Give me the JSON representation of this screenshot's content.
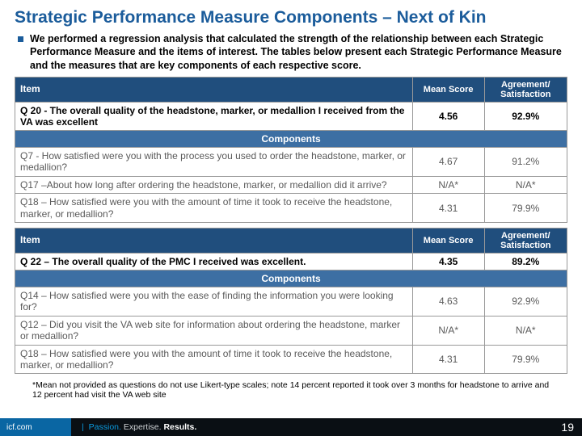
{
  "title": "Strategic Performance Measure Components – Next of Kin",
  "intro": "We performed a regression analysis that calculated the strength of the relationship between each Strategic Performance Measure and the items of interest. The tables below present each Strategic Performance Measure and the measures that are key components of each respective score.",
  "columns": {
    "item": "Item",
    "mean": "Mean Score",
    "agreement": "Agreement/ Satisfaction"
  },
  "components_label": "Components",
  "table1": {
    "main": {
      "label": "Q 20 - The overall quality of the headstone, marker, or medallion I received from the VA was excellent",
      "mean": "4.56",
      "agreement": "92.9%"
    },
    "rows": [
      {
        "label": "Q7 - How satisfied were you with the process you used to order the headstone, marker, or medallion?",
        "mean": "4.67",
        "agreement": "91.2%"
      },
      {
        "label": "Q17 –About how long after ordering the headstone, marker, or medallion did it arrive?",
        "mean": "N/A*",
        "agreement": "N/A*"
      },
      {
        "label": "Q18 – How satisfied were you with the amount of time it took to receive the headstone, marker, or medallion?",
        "mean": "4.31",
        "agreement": "79.9%"
      }
    ]
  },
  "table2": {
    "main": {
      "label": "Q 22 – The overall quality of the PMC I received was excellent.",
      "mean": "4.35",
      "agreement": "89.2%"
    },
    "rows": [
      {
        "label": "Q14 – How satisfied were you with the ease of finding the information you were looking for?",
        "mean": "4.63",
        "agreement": "92.9%"
      },
      {
        "label": "Q12 – Did you visit the VA web site for information about ordering the headstone, marker or medallion?",
        "mean": "N/A*",
        "agreement": "N/A*"
      },
      {
        "label": "Q18 – How satisfied were you with the amount of time it took to receive the headstone, marker, or medallion?",
        "mean": "4.31",
        "agreement": "79.9%"
      }
    ]
  },
  "footnote": "*Mean not provided as questions do not use Likert-type scales; note 14 percent reported it took over 3 months for headstone to arrive and 12 percent had visit the VA web site",
  "footer": {
    "site": "icf.com",
    "tag_passion": "Passion.",
    "tag_expertise": "Expertise.",
    "tag_results": "Results.",
    "page": "19"
  },
  "colors": {
    "title": "#1b5c9b",
    "header_bg": "#204e7d",
    "subheader_bg": "#3d6fa3",
    "footer_blue": "#0a66a3",
    "footer_dark": "#0a0f14",
    "accent": "#0a9be0"
  }
}
